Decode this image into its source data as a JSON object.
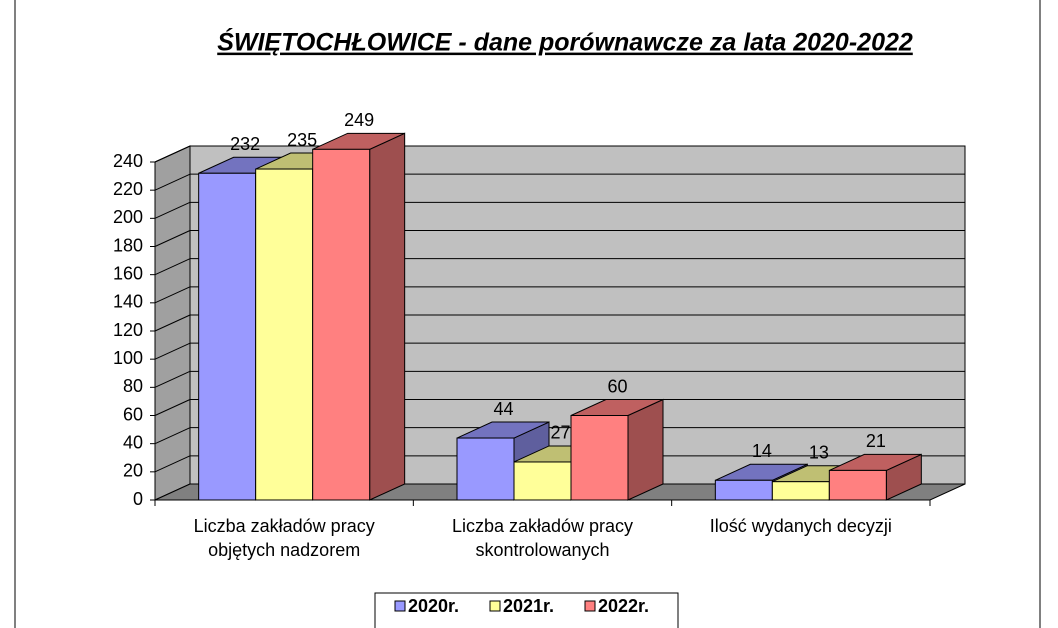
{
  "chart_data": {
    "type": "bar3d",
    "title": "ŚWIĘTOCHŁOWICE - dane  porównawcze  za  lata  2020-2022",
    "categories": [
      "Liczba zakładów pracy objętych nadzorem",
      "Liczba zakładów pracy skontrolowanych",
      "Ilość wydanych decyzji"
    ],
    "series": [
      {
        "name": "2020r.",
        "color": "#9999ff",
        "values": [
          232,
          44,
          14
        ]
      },
      {
        "name": "2021r.",
        "color": "#ffff99",
        "values": [
          235,
          27,
          13
        ]
      },
      {
        "name": "2022r.",
        "color": "#ff8080",
        "values": [
          249,
          60,
          21
        ]
      }
    ],
    "ylim": [
      0,
      240
    ],
    "yticks": [
      0,
      20,
      40,
      60,
      80,
      100,
      120,
      140,
      160,
      180,
      200,
      220,
      240
    ],
    "grid": true,
    "legend": "bottom"
  }
}
